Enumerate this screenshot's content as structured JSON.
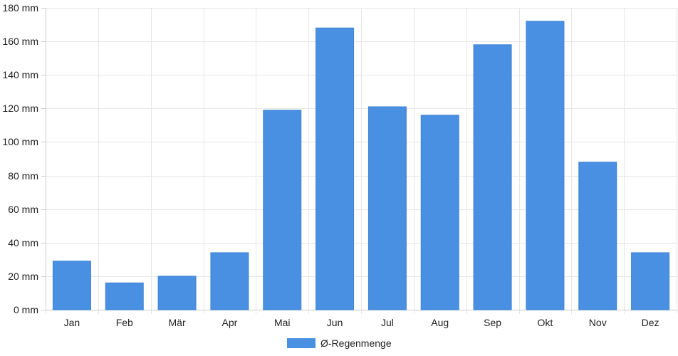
{
  "chart_data": {
    "type": "bar",
    "categories": [
      "Jan",
      "Feb",
      "Mär",
      "Apr",
      "Mai",
      "Jun",
      "Jul",
      "Aug",
      "Sep",
      "Okt",
      "Nov",
      "Dez"
    ],
    "series": [
      {
        "name": "Ø-Regenmenge",
        "color": "#4a90e2",
        "values": [
          29,
          16,
          20,
          34,
          119,
          168,
          121,
          116,
          158,
          172,
          88,
          34
        ]
      }
    ],
    "ylim": [
      0,
      180
    ],
    "yticks": [
      0,
      20,
      40,
      60,
      80,
      100,
      120,
      140,
      160,
      180
    ],
    "ytick_labels": [
      "0 mm",
      "20 mm",
      "40 mm",
      "60 mm",
      "80 mm",
      "100 mm",
      "120 mm",
      "140 mm",
      "160 mm",
      "180 mm"
    ],
    "unit": "mm",
    "grid": true,
    "legend_position": "bottom-center",
    "title": "",
    "xlabel": "",
    "ylabel": ""
  }
}
